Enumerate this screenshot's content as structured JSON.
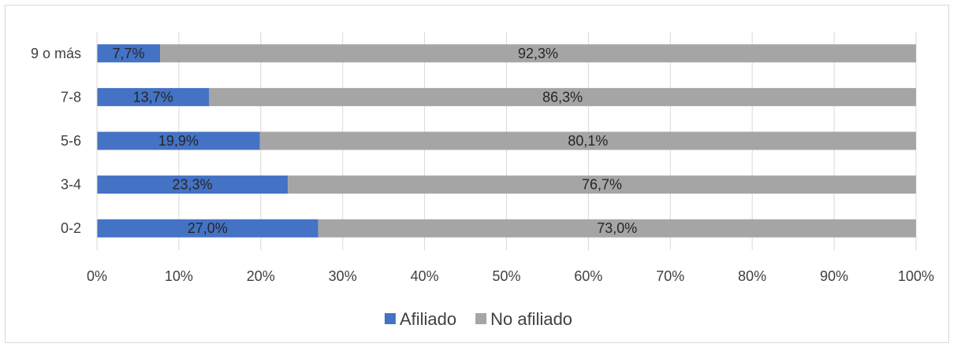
{
  "chart_data": {
    "type": "bar",
    "orientation": "horizontal",
    "stacked": "percent",
    "categories": [
      "9 o más",
      "7-8",
      "5-6",
      "3-4",
      "0-2"
    ],
    "series": [
      {
        "name": "Afiliado",
        "values": [
          7.7,
          13.7,
          19.9,
          23.3,
          27.0
        ],
        "labels": [
          "7,7%",
          "13,7%",
          "19,9%",
          "23,3%",
          "27,0%"
        ],
        "color": "#4472c4"
      },
      {
        "name": "No afiliado",
        "values": [
          92.3,
          86.3,
          80.1,
          76.7,
          73.0
        ],
        "labels": [
          "92,3%",
          "86,3%",
          "80,1%",
          "76,7%",
          "73,0%"
        ],
        "color": "#a5a5a5"
      }
    ],
    "x_ticks": [
      "0%",
      "10%",
      "20%",
      "30%",
      "40%",
      "50%",
      "60%",
      "70%",
      "80%",
      "90%",
      "100%"
    ],
    "xlim": [
      0,
      100
    ],
    "grid": true,
    "legend_position": "bottom",
    "title": "",
    "xlabel": "",
    "ylabel": ""
  }
}
